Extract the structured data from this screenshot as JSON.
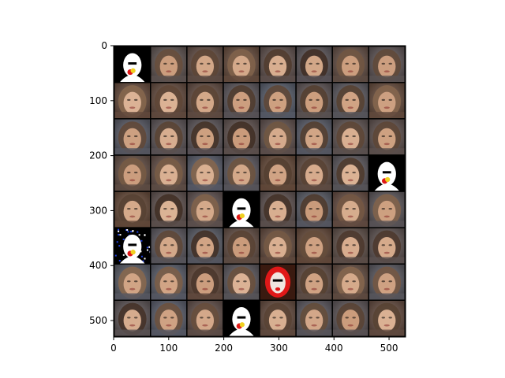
{
  "chart_data": {
    "type": "heatmap",
    "title": "",
    "xlabel": "",
    "ylabel": "",
    "xlim": [
      0,
      530
    ],
    "ylim": [
      530,
      0
    ],
    "x_ticks": [
      0,
      100,
      200,
      300,
      400,
      500
    ],
    "y_ticks": [
      0,
      100,
      200,
      300,
      400,
      500
    ],
    "x_tick_labels": [
      "0",
      "100",
      "200",
      "300",
      "400",
      "500"
    ],
    "y_tick_labels": [
      "0",
      "100",
      "200",
      "300",
      "400",
      "500"
    ],
    "grid": false,
    "legend": "none",
    "image_grid": {
      "rows": 8,
      "cols": 8,
      "tile_size": 64,
      "separator": 2,
      "separator_color": "#000000",
      "anomalous_tiles": [
        {
          "row": 0,
          "col": 0,
          "kind": "white-mask-black-bg"
        },
        {
          "row": 3,
          "col": 7,
          "kind": "white-mask-black-bg"
        },
        {
          "row": 4,
          "col": 3,
          "kind": "white-mask-black-bg"
        },
        {
          "row": 5,
          "col": 0,
          "kind": "white-mask-blue-speckles"
        },
        {
          "row": 6,
          "col": 4,
          "kind": "red-white-face-dark-bg"
        },
        {
          "row": 7,
          "col": 3,
          "kind": "white-mask-black-bg"
        }
      ],
      "palette": {
        "skin": "#c99a7a",
        "hair_dark": "#3a2a22",
        "hair_light": "#8a6a50",
        "bg_warm": "#7a5a48",
        "bg_cool": "#6a7080",
        "mask_white": "#ffffff",
        "mask_black": "#000000",
        "accent_red": "#e01818",
        "accent_yellow": "#f0d020",
        "speckle_blue": "#2040e0"
      }
    }
  }
}
